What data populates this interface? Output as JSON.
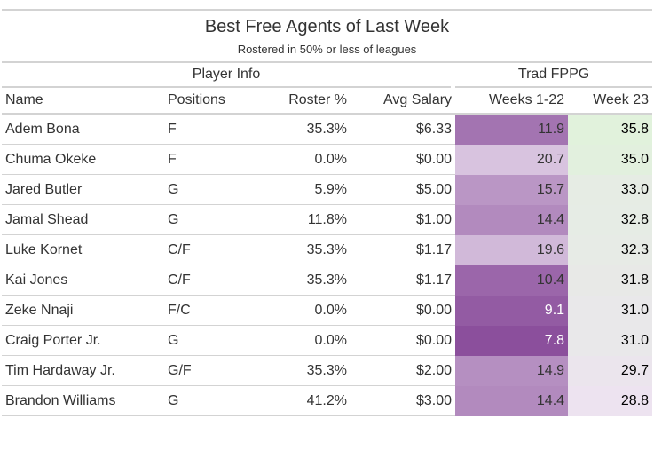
{
  "chart_data": {
    "type": "table",
    "title": "Best Free Agents of Last Week",
    "subtitle": "Rostered in 50% or less of leagues",
    "spanners": [
      {
        "label": "Player Info"
      },
      {
        "label": "Trad FPPG"
      }
    ],
    "columns": [
      "Name",
      "Positions",
      "Roster %",
      "Avg Salary",
      "Weeks 1-22",
      "Week 23"
    ],
    "rows": [
      {
        "name": "Adem Bona",
        "positions": "F",
        "roster": "35.3%",
        "salary": "$6.33",
        "weeks": "11.9",
        "week23": "35.8"
      },
      {
        "name": "Chuma Okeke",
        "positions": "F",
        "roster": "0.0%",
        "salary": "$0.00",
        "weeks": "20.7",
        "week23": "35.0"
      },
      {
        "name": "Jared Butler",
        "positions": "G",
        "roster": "5.9%",
        "salary": "$5.00",
        "weeks": "15.7",
        "week23": "33.0"
      },
      {
        "name": "Jamal Shead",
        "positions": "G",
        "roster": "11.8%",
        "salary": "$1.00",
        "weeks": "14.4",
        "week23": "32.8"
      },
      {
        "name": "Luke Kornet",
        "positions": "C/F",
        "roster": "35.3%",
        "salary": "$1.17",
        "weeks": "19.6",
        "week23": "32.3"
      },
      {
        "name": "Kai Jones",
        "positions": "C/F",
        "roster": "35.3%",
        "salary": "$1.17",
        "weeks": "10.4",
        "week23": "31.8"
      },
      {
        "name": "Zeke Nnaji",
        "positions": "F/C",
        "roster": "0.0%",
        "salary": "$0.00",
        "weeks": "9.1",
        "week23": "31.0"
      },
      {
        "name": "Craig Porter Jr.",
        "positions": "G",
        "roster": "0.0%",
        "salary": "$0.00",
        "weeks": "7.8",
        "week23": "31.0"
      },
      {
        "name": "Tim Hardaway Jr.",
        "positions": "G/F",
        "roster": "35.3%",
        "salary": "$2.00",
        "weeks": "14.9",
        "week23": "29.7"
      },
      {
        "name": "Brandon Williams",
        "positions": "G",
        "roster": "41.2%",
        "salary": "$3.00",
        "weeks": "14.4",
        "week23": "28.8"
      }
    ],
    "colors": {
      "weeks_scale_low": "#8b4f9c",
      "weeks_scale_high": "#d8c3df",
      "week23_scale_low": "#ede3f0",
      "week23_scale_high": "#e1f2dc"
    }
  }
}
